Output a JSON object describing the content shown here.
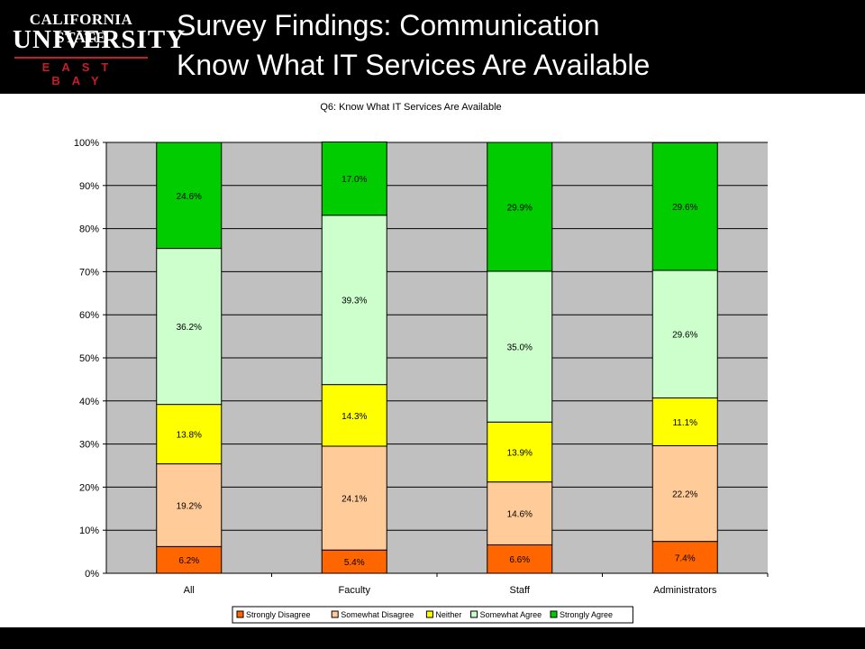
{
  "header": {
    "logo_line1": "CALIFORNIA STATE",
    "logo_line2": "UNIVERSITY",
    "logo_line3": "EAST BAY",
    "title_line1": "Survey Findings: Communication",
    "title_line2": "Know What IT Services Are Available"
  },
  "colors": {
    "header_bg": "#000000",
    "logo_accent": "#c41e2a",
    "plot_bg": "#c0c0c0"
  },
  "chart_data": {
    "type": "bar",
    "stacked": true,
    "percent_stacked": true,
    "title": "Q6: Know What IT Services Are Available",
    "categories": [
      "All",
      "Faculty",
      "Staff",
      "Administrators"
    ],
    "ylim": [
      0,
      100
    ],
    "yticks": [
      "0%",
      "10%",
      "20%",
      "30%",
      "40%",
      "50%",
      "60%",
      "70%",
      "80%",
      "90%",
      "100%"
    ],
    "grid": true,
    "legend_position": "bottom",
    "series": [
      {
        "name": "Strongly Disagree",
        "color": "#ff6600",
        "values": [
          6.2,
          5.4,
          6.6,
          7.4
        ],
        "labels": [
          "6.2%",
          "5.4%",
          "6.6%",
          "7.4%"
        ]
      },
      {
        "name": "Somewhat Disagree",
        "color": "#ffcc99",
        "values": [
          19.2,
          24.1,
          14.6,
          22.2
        ],
        "labels": [
          "19.2%",
          "24.1%",
          "14.6%",
          "22.2%"
        ]
      },
      {
        "name": "Neither",
        "color": "#ffff00",
        "values": [
          13.8,
          14.3,
          13.9,
          11.1
        ],
        "labels": [
          "13.8%",
          "14.3%",
          "13.9%",
          "11.1%"
        ]
      },
      {
        "name": "Somewhat Agree",
        "color": "#ccffcc",
        "values": [
          36.2,
          39.3,
          35.0,
          29.6
        ],
        "labels": [
          "36.2%",
          "39.3%",
          "35.0%",
          "29.6%"
        ]
      },
      {
        "name": "Strongly Agree",
        "color": "#00cc00",
        "values": [
          24.6,
          17.0,
          29.9,
          29.6
        ],
        "labels": [
          "24.6%",
          "17.0%",
          "29.9%",
          "29.6%"
        ]
      }
    ]
  }
}
